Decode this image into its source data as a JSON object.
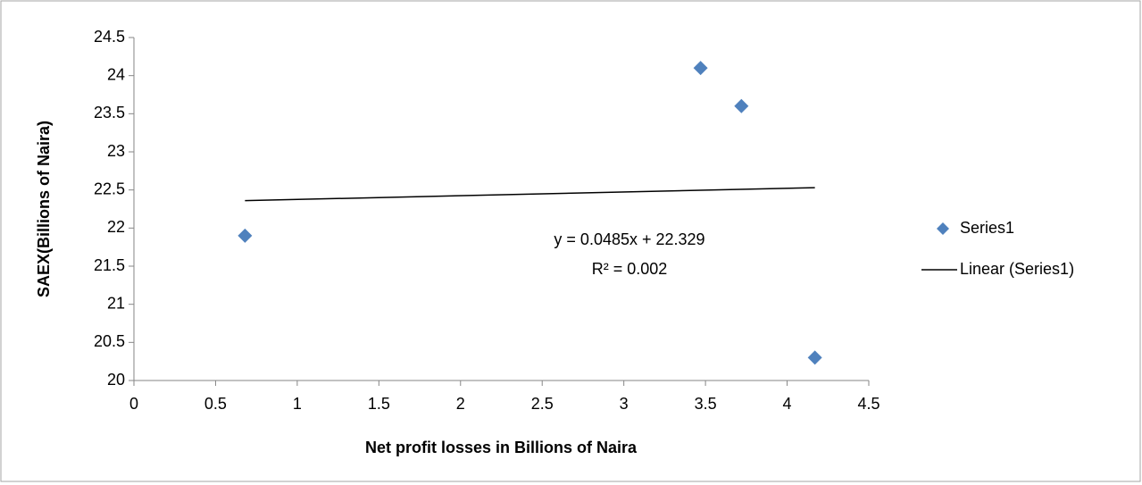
{
  "chart_data": {
    "type": "scatter",
    "x_label": "Net profit losses in Billions of Naira",
    "y_label": "SAEX(Billions of Naira)",
    "series": [
      {
        "name": "Series1",
        "color": "#4f81bd",
        "x": [
          0.68,
          3.47,
          3.72,
          4.17
        ],
        "values": [
          21.9,
          24.1,
          23.6,
          20.3
        ]
      },
      {
        "name": "Linear (Series1)",
        "color": "#000000",
        "kind": "trendline",
        "x": [
          0.68,
          4.17
        ],
        "values": [
          22.36,
          22.53
        ]
      }
    ],
    "annotations": [
      "y = 0.0485x + 22.329",
      "R² = 0.002"
    ],
    "xlim": [
      0,
      4.5
    ],
    "xticks": [
      0,
      0.5,
      1,
      1.5,
      2,
      2.5,
      3,
      3.5,
      4,
      4.5
    ],
    "ylim": [
      20,
      24.5
    ],
    "yticks": [
      20,
      20.5,
      21,
      21.5,
      22,
      22.5,
      23,
      23.5,
      24,
      24.5
    ],
    "grid": false,
    "legend": "right"
  }
}
